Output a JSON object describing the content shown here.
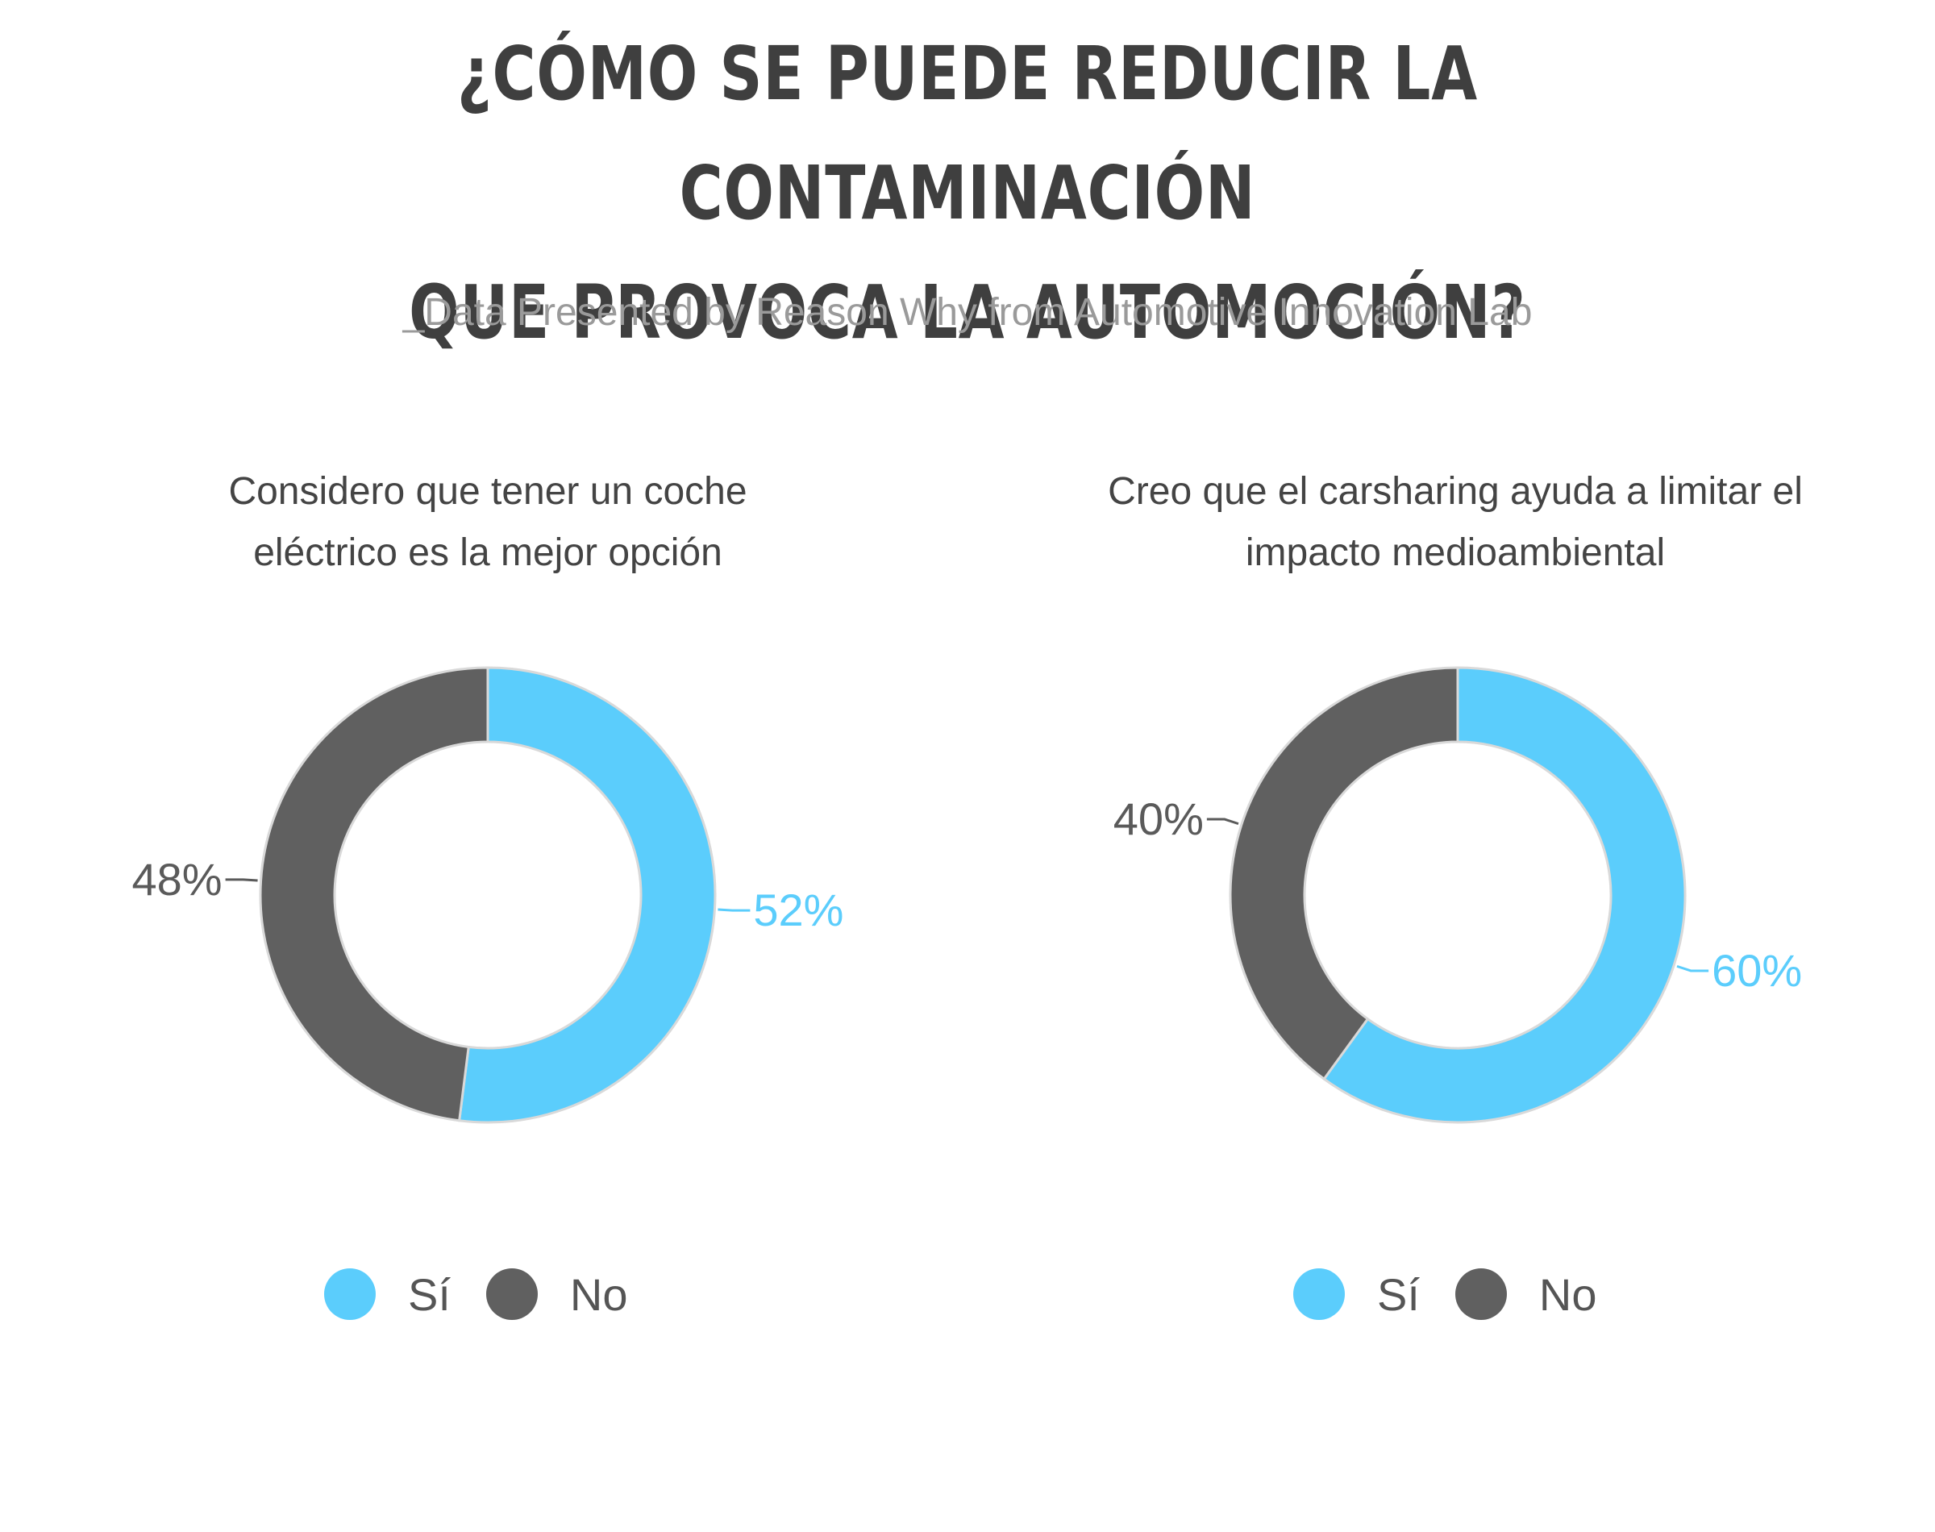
{
  "header": {
    "title_line1": "¿CÓMO SE PUEDE REDUCIR LA CONTAMINACIÓN",
    "title_line2": "QUE PROVOCA LA AUTOMOCIÓN?",
    "subtitle": "_Data Presented by Reason Why from Automotive Innovation Lab"
  },
  "colors": {
    "si": "#5BCDFC",
    "no": "#606060"
  },
  "chart_data": [
    {
      "type": "pie",
      "donut": true,
      "title_line1": "Considero que tener un coche",
      "title_line2": "eléctrico es la mejor opción",
      "categories": [
        "Sí",
        "No"
      ],
      "values": [
        52,
        48
      ],
      "value_labels": [
        "52%",
        "48%"
      ],
      "legend": [
        "Sí",
        "No"
      ],
      "legend_position": "bottom"
    },
    {
      "type": "pie",
      "donut": true,
      "title_line1": "Creo que el carsharing ayuda a limitar el",
      "title_line2": "impacto medioambiental",
      "categories": [
        "Sí",
        "No"
      ],
      "values": [
        60,
        40
      ],
      "value_labels": [
        "60%",
        "40%"
      ],
      "legend": [
        "Sí",
        "No"
      ],
      "legend_position": "bottom"
    }
  ]
}
